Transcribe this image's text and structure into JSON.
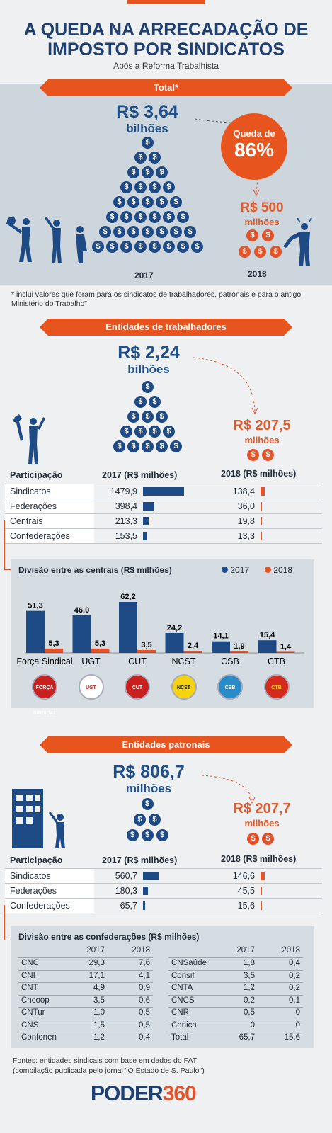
{
  "title_line1": "A QUEDA NA ARRECADAÇÃO DE",
  "title_line2": "IMPOSTO POR SINDICATOS",
  "subtitle": "Após a Reforma Trabalhista",
  "total": {
    "ribbon": "Total*",
    "value_2017": "R$ 3,64",
    "unit_2017": "bilhões",
    "drop_label": "Queda de",
    "drop_value": "86%",
    "value_2018": "R$ 500",
    "unit_2018": "milhões",
    "year_2017": "2017",
    "year_2018": "2018",
    "footnote": "* inclui valores que foram para os sindicatos de trabalhadores, patronais e para o antigo Ministério do Trabalho\"."
  },
  "workers": {
    "ribbon": "Entidades de trabalhadores",
    "value_2017": "R$ 2,24",
    "unit_2017": "bilhões",
    "value_2018": "R$ 207,5",
    "unit_2018": "milhões",
    "col_participacao": "Participação",
    "col_2017": "2017 (R$ milhões)",
    "col_2018": "2018 (R$ milhões)",
    "rows": [
      {
        "label": "Sindicatos",
        "v2017": "1479,9",
        "v2018": "138,4"
      },
      {
        "label": "Federações",
        "v2017": "398,4",
        "v2018": "36,0"
      },
      {
        "label": "Centrais",
        "v2017": "213,3",
        "v2018": "19,8"
      },
      {
        "label": "Confederações",
        "v2017": "153,5",
        "v2018": "13,3"
      }
    ],
    "centrais_title": "Divisão entre as centrais (R$ milhões)",
    "legend_2017": "2017",
    "legend_2018": "2018"
  },
  "employers": {
    "ribbon": "Entidades patronais",
    "value_2017": "R$ 806,7",
    "unit_2017": "milhões",
    "value_2018": "R$ 207,7",
    "unit_2018": "milhões",
    "col_participacao": "Participação",
    "col_2017": "2017 (R$ milhões)",
    "col_2018": "2018 (R$ milhões)",
    "rows": [
      {
        "label": "Sindicatos",
        "v2017": "560,7",
        "v2018": "146,6"
      },
      {
        "label": "Federações",
        "v2017": "180,3",
        "v2018": "45,5"
      },
      {
        "label": "Confederações",
        "v2017": "65,7",
        "v2018": "15,6"
      }
    ],
    "conf_title": "Divisão entre as confederações (R$ milhões)",
    "conf_col_2017": "2017",
    "conf_col_2018": "2018",
    "conf_left": [
      {
        "name": "CNC",
        "v2017": "29,3",
        "v2018": "7,6"
      },
      {
        "name": "CNI",
        "v2017": "17,1",
        "v2018": "4,1"
      },
      {
        "name": "CNT",
        "v2017": "4,9",
        "v2018": "0,9"
      },
      {
        "name": "Cncoop",
        "v2017": "3,5",
        "v2018": "0,6"
      },
      {
        "name": "CNTur",
        "v2017": "1,0",
        "v2018": "0,5"
      },
      {
        "name": "CNS",
        "v2017": "1,5",
        "v2018": "0,5"
      },
      {
        "name": "Confenen",
        "v2017": "1,2",
        "v2018": "0,4"
      }
    ],
    "conf_right": [
      {
        "name": "CNSaúde",
        "v2017": "1,8",
        "v2018": "0,4"
      },
      {
        "name": "Consif",
        "v2017": "3,5",
        "v2018": "0,2"
      },
      {
        "name": "CNTA",
        "v2017": "1,2",
        "v2018": "0,2"
      },
      {
        "name": "CNCS",
        "v2017": "0,2",
        "v2018": "0,1"
      },
      {
        "name": "CNR",
        "v2017": "0,5",
        "v2018": "0"
      },
      {
        "name": "Conica",
        "v2017": "0",
        "v2018": "0"
      },
      {
        "name": "Total",
        "v2017": "65,7",
        "v2018": "15,6"
      }
    ]
  },
  "sources_line1": "Fontes: entidades sindicais com base em dados do FAT",
  "sources_line2": "(compilação publicada pelo jornal \"O Estado de S. Paulo\")",
  "brand_a": "PODER",
  "brand_b": "360",
  "coin_symbol": "$",
  "colors": {
    "blue": "#1e4a86",
    "orange": "#e3532a",
    "band": "#cdd6dc"
  },
  "chart_data": [
    {
      "type": "bar",
      "title": "Divisão entre as centrais (R$ milhões)",
      "categories": [
        "Força Sindical",
        "UGT",
        "CUT",
        "NCST",
        "CSB",
        "CTB"
      ],
      "series": [
        {
          "name": "2017",
          "values": [
            51.3,
            46.0,
            62.2,
            24.2,
            14.1,
            15.4
          ],
          "labels": [
            "51,3",
            "46,0",
            "62,2",
            "24,2",
            "14,1",
            "15,4"
          ]
        },
        {
          "name": "2018",
          "values": [
            5.3,
            5.3,
            3.5,
            2.4,
            1.9,
            1.4
          ],
          "labels": [
            "5,3",
            "5,3",
            "3,5",
            "2,4",
            "1,9",
            "1,4"
          ]
        }
      ],
      "logos": [
        "FORÇA SINDICAL",
        "UGT",
        "CUT",
        "NCST",
        "CSB",
        "CTB"
      ],
      "legend": "top-right"
    },
    {
      "type": "bar",
      "title": "Participação — Entidades de trabalhadores",
      "categories": [
        "Sindicatos",
        "Federações",
        "Centrais",
        "Confederações"
      ],
      "series": [
        {
          "name": "2017 (R$ milhões)",
          "values": [
            1479.9,
            398.4,
            213.3,
            153.5
          ]
        },
        {
          "name": "2018 (R$ milhões)",
          "values": [
            138.4,
            36.0,
            19.8,
            13.3
          ]
        }
      ]
    },
    {
      "type": "bar",
      "title": "Participação — Entidades patronais",
      "categories": [
        "Sindicatos",
        "Federações",
        "Confederações"
      ],
      "series": [
        {
          "name": "2017 (R$ milhões)",
          "values": [
            560.7,
            180.3,
            65.7
          ]
        },
        {
          "name": "2018 (R$ milhões)",
          "values": [
            146.6,
            45.5,
            15.6
          ]
        }
      ]
    }
  ]
}
